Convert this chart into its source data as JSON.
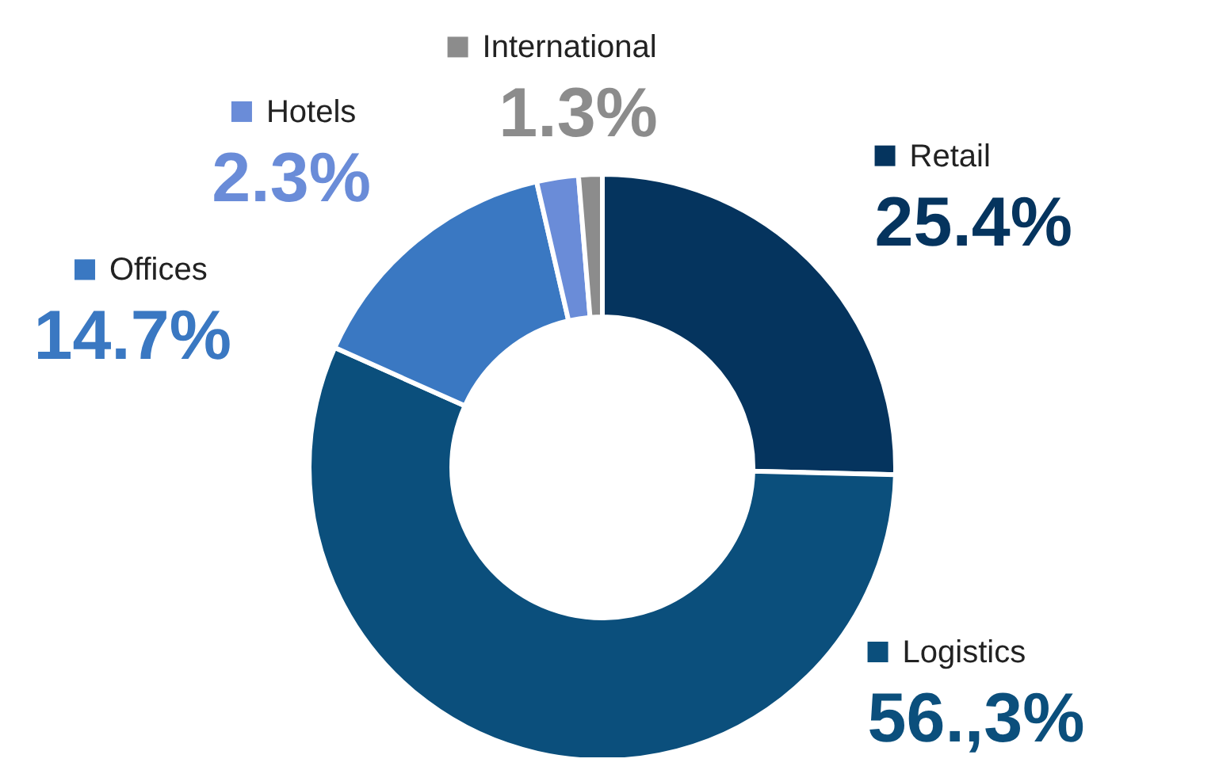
{
  "chart_data": {
    "type": "donut",
    "categories": [
      "Retail",
      "Logistics",
      "Offices",
      "Hotels",
      "International"
    ],
    "values": [
      25.4,
      56.3,
      14.7,
      2.3,
      1.3
    ],
    "value_labels": [
      "25.4%",
      "56.,3%",
      "14.7%",
      "2.3%",
      "1.3%"
    ],
    "colors": [
      "#05345e",
      "#0b4f7c",
      "#3a78c2",
      "#6a8cd8",
      "#8c8c8c"
    ],
    "legend": "top"
  }
}
